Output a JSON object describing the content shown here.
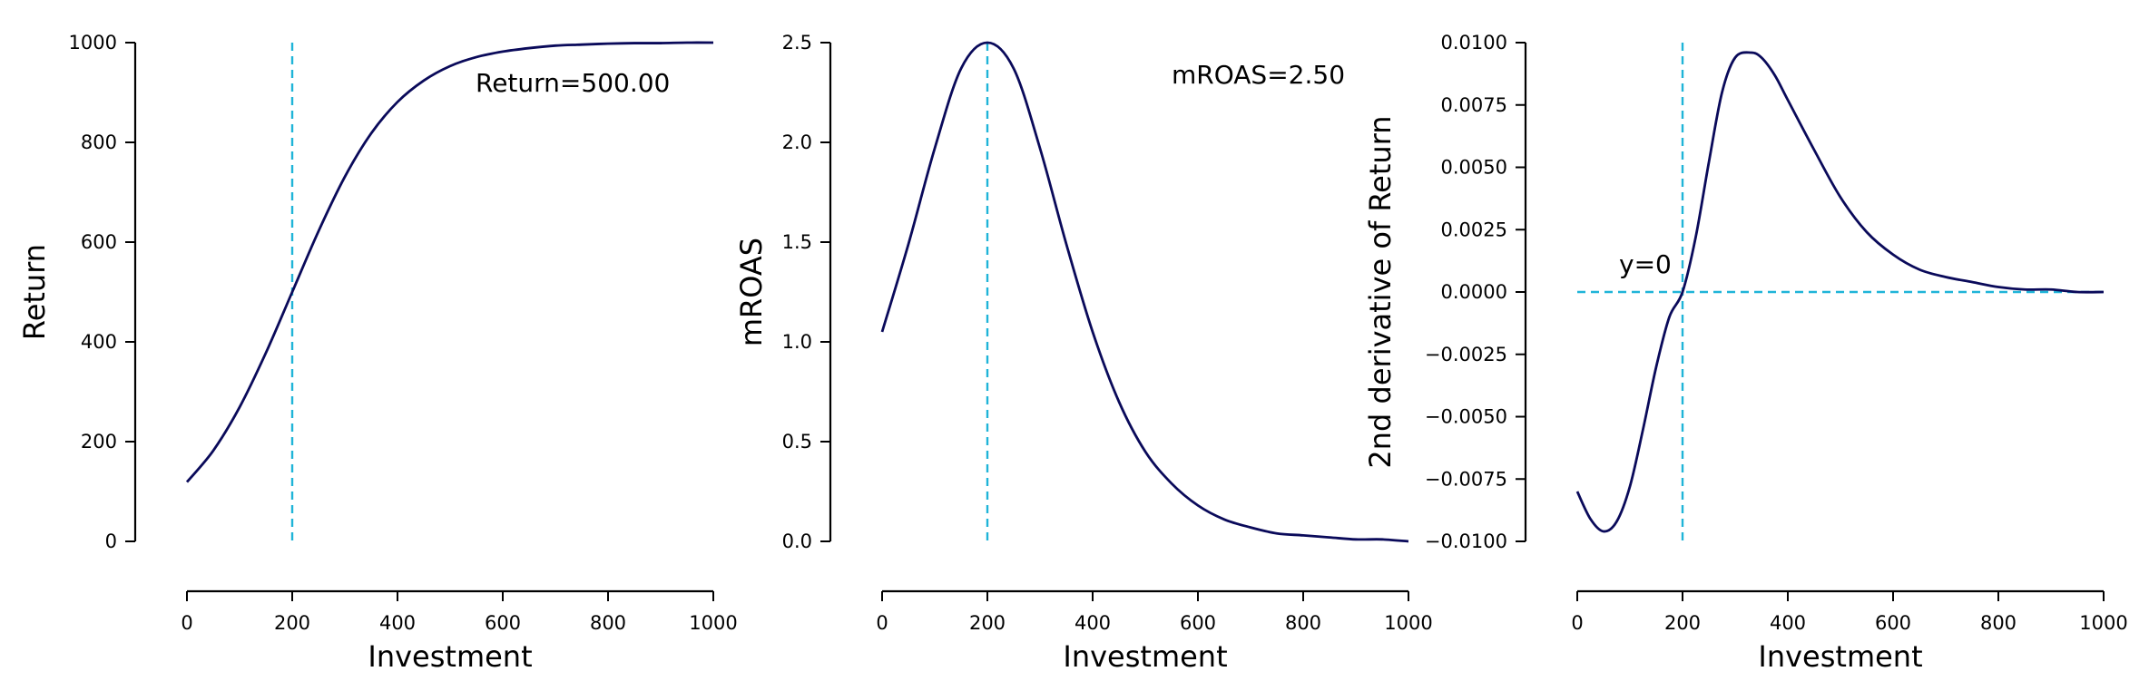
{
  "colors": {
    "curve": "#0a0a5a",
    "reference": "#1fb4d8"
  },
  "chart_data": [
    {
      "type": "line",
      "xlabel": "Investment",
      "ylabel": "Return",
      "xlim": [
        0,
        1000
      ],
      "ylim": [
        0,
        1000
      ],
      "xticks": [
        "0",
        "200",
        "400",
        "600",
        "800",
        "1000"
      ],
      "yticks": [
        "0",
        "200",
        "400",
        "600",
        "800",
        "1000"
      ],
      "series": [
        {
          "x": [
            0,
            50,
            100,
            150,
            200,
            250,
            300,
            350,
            400,
            450,
            500,
            550,
            600,
            650,
            700,
            750,
            800,
            850,
            900,
            950,
            1000
          ],
          "y": [
            119,
            182,
            269,
            378,
            500,
            622,
            731,
            818,
            881,
            924,
            953,
            971,
            982,
            989,
            994,
            996,
            998,
            999,
            999,
            1000,
            1000
          ]
        }
      ],
      "reference_lines": [
        {
          "orientation": "vertical",
          "x": 200
        }
      ],
      "annotations": [
        {
          "text": "Return=500.00"
        }
      ],
      "grid": false
    },
    {
      "type": "line",
      "xlabel": "Investment",
      "ylabel": "mROAS",
      "xlim": [
        0,
        1000
      ],
      "ylim": [
        0,
        2.5
      ],
      "xticks": [
        "0",
        "200",
        "400",
        "600",
        "800",
        "1000"
      ],
      "yticks": [
        "0.0",
        "0.5",
        "1.0",
        "1.5",
        "2.0",
        "2.5"
      ],
      "series": [
        {
          "x": [
            0,
            50,
            100,
            150,
            200,
            250,
            300,
            350,
            400,
            450,
            500,
            550,
            600,
            650,
            700,
            750,
            800,
            850,
            900,
            950,
            1000
          ],
          "y": [
            1.05,
            1.49,
            1.97,
            2.37,
            2.5,
            2.37,
            1.97,
            1.49,
            1.05,
            0.7,
            0.45,
            0.29,
            0.18,
            0.11,
            0.07,
            0.04,
            0.03,
            0.02,
            0.01,
            0.01,
            0.0
          ]
        }
      ],
      "reference_lines": [
        {
          "orientation": "vertical",
          "x": 200
        }
      ],
      "annotations": [
        {
          "text": "mROAS=2.50"
        }
      ],
      "grid": false
    },
    {
      "type": "line",
      "xlabel": "Investment",
      "ylabel": "2nd derivative of Return",
      "xlim": [
        0,
        1000
      ],
      "ylim": [
        -0.01,
        0.01
      ],
      "xticks": [
        "0",
        "200",
        "400",
        "600",
        "800",
        "1000"
      ],
      "yticks": [
        "−0.0100",
        "−0.0075",
        "−0.0050",
        "−0.0025",
        "0.0000",
        "0.0025",
        "0.0050",
        "0.0075",
        "0.0100"
      ],
      "series": [
        {
          "x": [
            0,
            25,
            50,
            75,
            100,
            125,
            150,
            175,
            200,
            225,
            250,
            275,
            300,
            330,
            350,
            375,
            400,
            450,
            500,
            550,
            600,
            650,
            700,
            750,
            800,
            850,
            900,
            950,
            1000
          ],
          "y": [
            -0.008,
            -0.0091,
            -0.0096,
            -0.0092,
            -0.0078,
            -0.0055,
            -0.003,
            -0.001,
            0.0,
            0.0022,
            0.0052,
            0.008,
            0.0094,
            0.0096,
            0.0094,
            0.0087,
            0.0077,
            0.0057,
            0.0038,
            0.0024,
            0.0015,
            0.0009,
            0.0006,
            0.0004,
            0.0002,
            0.0001,
            0.0001,
            0.0,
            0.0
          ]
        }
      ],
      "reference_lines": [
        {
          "orientation": "vertical",
          "x": 200
        },
        {
          "orientation": "horizontal",
          "y": 0
        }
      ],
      "annotations": [
        {
          "text": "y=0"
        }
      ],
      "grid": false
    }
  ]
}
